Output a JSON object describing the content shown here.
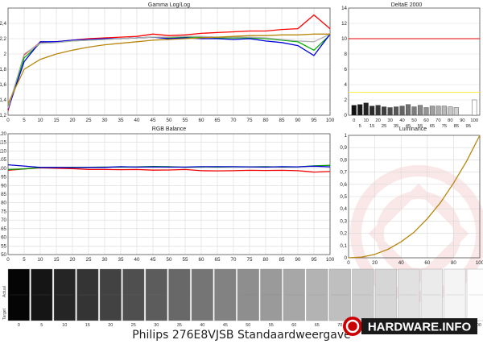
{
  "caption": "Philips 276E8VJSB Standaardweergave",
  "logo_text": "HARDWARE.INFO",
  "chart_data": [
    {
      "id": "gamma",
      "type": "line",
      "title": "Gamma Log/Log",
      "xlim": [
        0,
        100
      ],
      "ylim": [
        1.2,
        2.6
      ],
      "x_ticks": [
        0,
        5,
        10,
        15,
        20,
        25,
        30,
        35,
        40,
        45,
        50,
        55,
        60,
        65,
        70,
        75,
        80,
        85,
        90,
        95,
        100
      ],
      "y_ticks": [
        1.2,
        1.4,
        1.6,
        1.8,
        2.0,
        2.2,
        2.4
      ],
      "y_tick_labels": [
        "1,2",
        "1,4",
        "1,6",
        "1,8",
        "2",
        "2,2",
        "2,4"
      ],
      "grid": true,
      "x": [
        0,
        5,
        10,
        15,
        20,
        25,
        30,
        35,
        40,
        45,
        50,
        55,
        60,
        65,
        70,
        75,
        80,
        85,
        90,
        95,
        100
      ],
      "series": [
        {
          "color": "#ff0000",
          "values": [
            1.26,
            1.99,
            2.15,
            2.16,
            2.18,
            2.2,
            2.21,
            2.22,
            2.23,
            2.26,
            2.24,
            2.25,
            2.27,
            2.28,
            2.29,
            2.3,
            2.3,
            2.32,
            2.33,
            2.51,
            2.33
          ]
        },
        {
          "color": "#00aa00",
          "values": [
            1.3,
            1.95,
            2.14,
            2.15,
            2.17,
            2.18,
            2.19,
            2.2,
            2.21,
            2.22,
            2.21,
            2.22,
            2.22,
            2.21,
            2.21,
            2.21,
            2.2,
            2.18,
            2.16,
            2.05,
            2.25
          ]
        },
        {
          "color": "#0000dd",
          "values": [
            1.28,
            1.9,
            2.16,
            2.16,
            2.18,
            2.19,
            2.2,
            2.2,
            2.21,
            2.22,
            2.2,
            2.21,
            2.2,
            2.2,
            2.19,
            2.2,
            2.17,
            2.15,
            2.11,
            1.98,
            2.26
          ]
        },
        {
          "color": "#b0b0b0",
          "values": [
            1.29,
            2.0,
            2.14,
            2.15,
            2.17,
            2.18,
            2.19,
            2.2,
            2.21,
            2.22,
            2.22,
            2.23,
            2.23,
            2.22,
            2.22,
            2.22,
            2.21,
            2.19,
            2.17,
            2.16,
            2.26
          ]
        },
        {
          "color": "#b8860b",
          "values": [
            1.35,
            1.8,
            1.93,
            2.0,
            2.05,
            2.09,
            2.12,
            2.14,
            2.16,
            2.18,
            2.19,
            2.2,
            2.21,
            2.22,
            2.23,
            2.24,
            2.24,
            2.25,
            2.25,
            2.26,
            2.26
          ]
        }
      ]
    },
    {
      "id": "deltae",
      "type": "bar",
      "title": "DeltaE 2000",
      "ylim": [
        0,
        14
      ],
      "y_ticks": [
        0,
        2,
        4,
        6,
        8,
        10,
        12,
        14
      ],
      "x_ticks_top": [
        "0",
        "10",
        "20",
        "30",
        "40",
        "50",
        "60",
        "70",
        "80",
        "90",
        "100"
      ],
      "x_ticks_bottom": [
        "5",
        "15",
        "25",
        "35",
        "45",
        "55",
        "65",
        "75",
        "85",
        "95"
      ],
      "reference_lines": [
        {
          "value": 10,
          "color": "#ee0000"
        },
        {
          "value": 3,
          "color": "#ffee44"
        }
      ],
      "bars": [
        {
          "label": "0",
          "value": 1.3,
          "fill": "#111111"
        },
        {
          "label": "5",
          "value": 1.4,
          "fill": "#1a1a1a"
        },
        {
          "label": "10",
          "value": 1.6,
          "fill": "#222222"
        },
        {
          "label": "15",
          "value": 1.2,
          "fill": "#2c2c2c"
        },
        {
          "label": "20",
          "value": 1.3,
          "fill": "#363636"
        },
        {
          "label": "25",
          "value": 1.1,
          "fill": "#404040"
        },
        {
          "label": "30",
          "value": 1.0,
          "fill": "#4c4c4c"
        },
        {
          "label": "35",
          "value": 1.1,
          "fill": "#585858"
        },
        {
          "label": "40",
          "value": 1.2,
          "fill": "#646464"
        },
        {
          "label": "45",
          "value": 1.4,
          "fill": "#707070"
        },
        {
          "label": "50",
          "value": 1.1,
          "fill": "#7c7c7c"
        },
        {
          "label": "55",
          "value": 1.3,
          "fill": "#888888"
        },
        {
          "label": "60",
          "value": 1.0,
          "fill": "#949494"
        },
        {
          "label": "65",
          "value": 1.2,
          "fill": "#a0a0a0"
        },
        {
          "label": "70",
          "value": 1.2,
          "fill": "#acacac"
        },
        {
          "label": "75",
          "value": 1.2,
          "fill": "#b8b8b8"
        },
        {
          "label": "80",
          "value": 1.1,
          "fill": "#c4c4c4"
        },
        {
          "label": "85",
          "value": 1.0,
          "fill": "#d0d0d0"
        },
        {
          "label": "90",
          "value": 0.0,
          "fill": "#dcdcdc"
        },
        {
          "label": "95",
          "value": 0.0,
          "fill": "#e8e8e8"
        },
        {
          "label": "100",
          "value": 2.0,
          "fill": "#ffffff"
        }
      ]
    },
    {
      "id": "rgb",
      "type": "line",
      "title": "RGB Balance",
      "xlim": [
        0,
        100
      ],
      "ylim": [
        50,
        120
      ],
      "x_ticks": [
        0,
        5,
        10,
        15,
        20,
        25,
        30,
        35,
        40,
        45,
        50,
        55,
        60,
        65,
        70,
        75,
        80,
        85,
        90,
        95,
        100
      ],
      "y_ticks": [
        50,
        55,
        60,
        65,
        70,
        75,
        80,
        85,
        90,
        95,
        100,
        105,
        110,
        115,
        120
      ],
      "grid": true,
      "x": [
        0,
        5,
        10,
        15,
        20,
        25,
        30,
        35,
        40,
        45,
        50,
        55,
        60,
        65,
        70,
        75,
        80,
        85,
        90,
        95,
        100
      ],
      "series": [
        {
          "color": "#ee0000",
          "values": [
            98.8,
            99.6,
            100.2,
            100.0,
            99.8,
            99.3,
            99.3,
            99.2,
            99.3,
            98.9,
            99.0,
            99.3,
            98.6,
            98.5,
            98.6,
            98.8,
            98.7,
            98.8,
            98.6,
            97.8,
            98.1
          ]
        },
        {
          "color": "#009900",
          "values": [
            99.3,
            99.6,
            100.4,
            100.4,
            100.6,
            100.6,
            100.7,
            100.7,
            100.8,
            101.0,
            100.9,
            100.6,
            100.8,
            100.7,
            100.8,
            100.8,
            100.9,
            100.7,
            100.8,
            101.4,
            101.7
          ]
        },
        {
          "color": "#0000cc",
          "values": [
            102.0,
            101.3,
            100.5,
            100.5,
            100.4,
            100.5,
            100.5,
            100.9,
            100.7,
            100.8,
            100.7,
            100.7,
            100.9,
            100.9,
            100.9,
            100.8,
            100.7,
            100.9,
            100.8,
            101.2,
            100.8
          ]
        }
      ]
    },
    {
      "id": "luminance",
      "type": "line",
      "title": "Luminance",
      "xlim": [
        0,
        100
      ],
      "ylim": [
        0,
        1
      ],
      "x_ticks": [
        0,
        20,
        40,
        60,
        80,
        100
      ],
      "y_ticks": [
        0,
        0.1,
        0.2,
        0.3,
        0.4,
        0.5,
        0.6,
        0.7,
        0.8,
        0.9,
        1
      ],
      "y_tick_labels": [
        "0",
        "0,1",
        "0,2",
        "0,3",
        "0,4",
        "0,5",
        "0,6",
        "0,7",
        "0,8",
        "0,9",
        "1"
      ],
      "grid": true,
      "x": [
        0,
        10,
        20,
        30,
        40,
        50,
        60,
        70,
        80,
        90,
        100
      ],
      "series": [
        {
          "color": "#b8860b",
          "values": [
            0,
            0.006,
            0.028,
            0.069,
            0.13,
            0.21,
            0.32,
            0.45,
            0.61,
            0.79,
            1.0
          ]
        }
      ]
    },
    {
      "id": "grayscale",
      "type": "table",
      "row_labels": [
        "Actual",
        "Target"
      ],
      "labels": [
        "0",
        "5",
        "10",
        "15",
        "20",
        "25",
        "30",
        "35",
        "40",
        "45",
        "50",
        "55",
        "60",
        "65",
        "70",
        "75",
        "80",
        "85",
        "90",
        "95",
        "100"
      ],
      "swatches": [
        "#050505",
        "#151515",
        "#252525",
        "#343434",
        "#424242",
        "#4f4f4f",
        "#5c5c5c",
        "#686868",
        "#757575",
        "#828282",
        "#8e8e8e",
        "#9a9a9a",
        "#a7a7a7",
        "#b3b3b3",
        "#bfbfbf",
        "#cbcbcb",
        "#d6d6d6",
        "#e1e1e1",
        "#ebebeb",
        "#f4f4f4",
        "#fdfdfd"
      ]
    }
  ]
}
